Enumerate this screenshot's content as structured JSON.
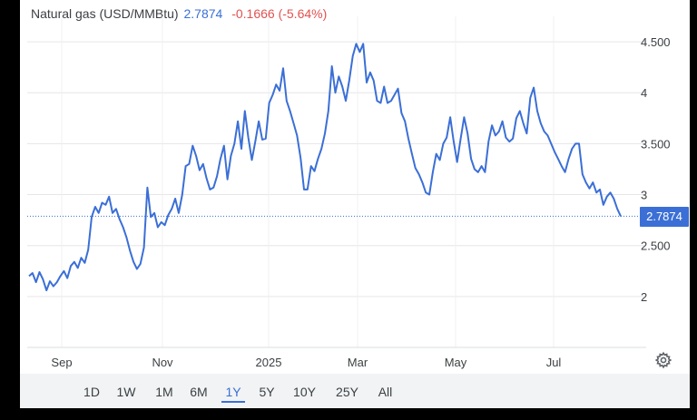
{
  "header": {
    "name": "Natural gas (USD/MMBtu)",
    "price": "2.7874",
    "change": "-0.1666 (-5.64%)"
  },
  "current_price_tag": "2.7874",
  "colors": {
    "line": "#3b6fd6",
    "negative": "#e05252",
    "grid": "#e6e6e6"
  },
  "settings_icon": "gear-icon",
  "range_buttons": [
    "1D",
    "1W",
    "1M",
    "6M",
    "1Y",
    "5Y",
    "10Y",
    "25Y",
    "All"
  ],
  "selected_range": "1Y",
  "chart_data": {
    "type": "line",
    "title": "Natural gas (USD/MMBtu)",
    "x_tick_labels": [
      "Sep",
      "Nov",
      "2025",
      "Mar",
      "May",
      "Jul"
    ],
    "y_tick_labels": [
      "4.500",
      "4",
      "3.500",
      "3",
      "2.500",
      "2"
    ],
    "y_ticks": [
      4.5,
      4,
      3.5,
      3,
      2.5,
      2
    ],
    "ylim": [
      1.5,
      4.75
    ],
    "reference_line": 2.7874,
    "grid": true,
    "series": [
      {
        "values": [
          2.2,
          2.23,
          2.14,
          2.24,
          2.17,
          2.06,
          2.15,
          2.1,
          2.14,
          2.2,
          2.25,
          2.18,
          2.3,
          2.34,
          2.28,
          2.38,
          2.33,
          2.46,
          2.78,
          2.88,
          2.82,
          2.92,
          2.9,
          2.98,
          2.82,
          2.86,
          2.76,
          2.68,
          2.58,
          2.45,
          2.34,
          2.27,
          2.32,
          2.48,
          3.07,
          2.78,
          2.82,
          2.68,
          2.73,
          2.7,
          2.8,
          2.86,
          2.96,
          2.82,
          3.0,
          3.28,
          3.3,
          3.48,
          3.38,
          3.24,
          3.3,
          3.16,
          3.05,
          3.07,
          3.18,
          3.35,
          3.48,
          3.15,
          3.38,
          3.5,
          3.72,
          3.45,
          3.82,
          3.56,
          3.34,
          3.52,
          3.72,
          3.54,
          3.55,
          3.9,
          3.98,
          4.08,
          4.02,
          4.24,
          3.92,
          3.82,
          3.7,
          3.58,
          3.36,
          3.05,
          3.05,
          3.28,
          3.23,
          3.35,
          3.45,
          3.6,
          3.82,
          4.26,
          4.0,
          4.16,
          4.06,
          3.92,
          4.12,
          4.36,
          4.48,
          4.4,
          4.48,
          4.1,
          4.2,
          4.12,
          3.92,
          3.9,
          4.06,
          3.9,
          3.92,
          3.98,
          4.04,
          3.8,
          3.72,
          3.55,
          3.4,
          3.26,
          3.2,
          3.12,
          3.02,
          3.0,
          3.22,
          3.4,
          3.34,
          3.5,
          3.56,
          3.76,
          3.52,
          3.32,
          3.55,
          3.76,
          3.6,
          3.35,
          3.25,
          3.22,
          3.28,
          3.22,
          3.52,
          3.68,
          3.58,
          3.62,
          3.72,
          3.56,
          3.52,
          3.55,
          3.75,
          3.82,
          3.7,
          3.6,
          3.95,
          4.05,
          3.82,
          3.7,
          3.62,
          3.58,
          3.5,
          3.42,
          3.35,
          3.28,
          3.22,
          3.35,
          3.45,
          3.5,
          3.5,
          3.2,
          3.12,
          3.06,
          3.12,
          3.02,
          3.05,
          2.9,
          2.98,
          3.02,
          2.96,
          2.86,
          2.7874
        ]
      }
    ]
  }
}
